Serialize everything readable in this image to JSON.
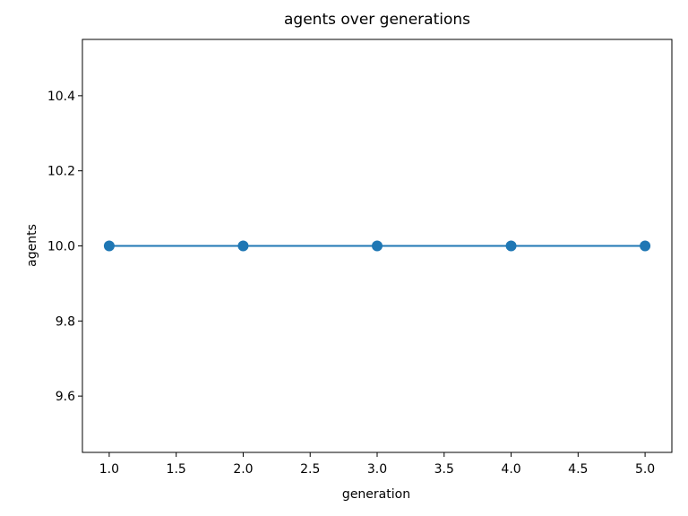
{
  "chart_data": {
    "type": "line",
    "title": "agents over generations",
    "xlabel": "generation",
    "ylabel": "agents",
    "x": [
      1,
      2,
      3,
      4,
      5
    ],
    "series": [
      {
        "name": "agents",
        "values": [
          10,
          10,
          10,
          10,
          10
        ]
      }
    ],
    "xlim": [
      0.8,
      5.2
    ],
    "ylim": [
      9.45,
      10.55
    ],
    "xticks": [
      1.0,
      1.5,
      2.0,
      2.5,
      3.0,
      3.5,
      4.0,
      4.5,
      5.0
    ],
    "yticks": [
      9.6,
      9.8,
      10.0,
      10.2,
      10.4
    ],
    "tick_label_decimals": 1,
    "line_color": "#1f77b4",
    "marker": "circle",
    "grid": false,
    "legend": null,
    "background_color": "#ffffff",
    "spine_color": "#000000"
  }
}
